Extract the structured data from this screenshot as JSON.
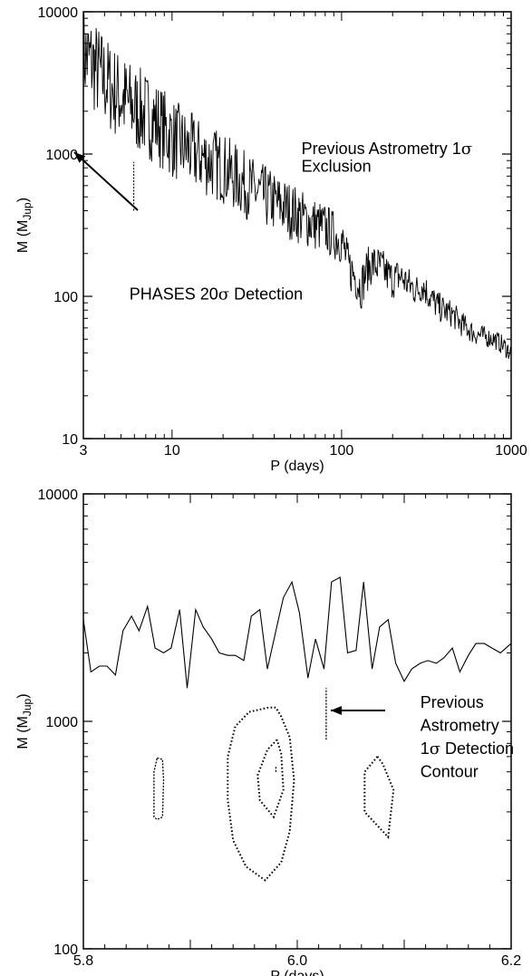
{
  "chart_data": [
    {
      "type": "line",
      "xlabel": "P (days)",
      "ylabel": "M (M",
      "ylabel_sub": "Jup",
      "ylabel_close": ")",
      "xscale": "log",
      "yscale": "log",
      "xlim": [
        3,
        1000
      ],
      "ylim": [
        10,
        10000
      ],
      "xticks": [
        "3",
        "10",
        "100",
        "1000"
      ],
      "yticks": [
        "10",
        "100",
        "1000",
        "10000"
      ],
      "series": [
        {
          "style": "solid",
          "x": [
            3.0,
            3.3,
            3.6,
            4.0,
            4.5,
            5.0,
            6.0,
            7.0,
            8.0,
            10.0,
            12.0,
            15.0,
            20.0,
            25.0,
            30.0,
            40.0,
            50.0,
            60.0,
            70.0,
            80.0,
            90.0,
            100.0,
            110.0,
            120.0,
            130.0,
            140.0,
            150.0,
            170.0,
            200.0,
            220.0,
            250.0,
            280.0,
            300.0,
            330.0,
            370.0,
            400.0,
            450.0,
            500.0,
            550.0,
            600.0,
            700.0,
            800.0,
            900.0,
            1000.0
          ],
          "y": [
            5000,
            4500,
            3900,
            3300,
            2800,
            2500,
            2100,
            1900,
            1700,
            1300,
            1100,
            950,
            800,
            650,
            560,
            460,
            400,
            350,
            320,
            300,
            270,
            250,
            160,
            140,
            115,
            150,
            170,
            160,
            130,
            140,
            120,
            110,
            120,
            100,
            85,
            80,
            75,
            65,
            60,
            55,
            52,
            50,
            45,
            40
          ],
          "noise": 0.35
        },
        {
          "style": "dashed",
          "x": [
            5.95,
            5.95
          ],
          "y": [
            400,
            880
          ]
        }
      ],
      "annotations": [
        {
          "text": "Previous Astrometry 1",
          "symbol": "σ",
          "x": 58,
          "y": 1000
        },
        {
          "text": "Exclusion",
          "x": 58,
          "y": 750
        },
        {
          "text": "PHASES 20",
          "symbol": "σ",
          "suffix": " Detection",
          "x": 5.6,
          "y": 95
        }
      ]
    },
    {
      "type": "line",
      "xlabel": "P (days)",
      "ylabel": "M (M",
      "ylabel_sub": "Jup",
      "ylabel_close": ")",
      "xscale": "linear",
      "yscale": "log",
      "xlim": [
        5.8,
        6.2
      ],
      "ylim": [
        100,
        10000
      ],
      "xticks": [
        "5.8",
        "6.0",
        "6.2"
      ],
      "yticks": [
        "100",
        "1000",
        "10000"
      ],
      "series": [
        {
          "style": "solid",
          "x": [
            5.8,
            5.807,
            5.815,
            5.822,
            5.83,
            5.837,
            5.845,
            5.852,
            5.86,
            5.867,
            5.875,
            5.882,
            5.89,
            5.897,
            5.905,
            5.912,
            5.92,
            5.927,
            5.935,
            5.942,
            5.95,
            5.957,
            5.965,
            5.972,
            5.98,
            5.987,
            5.995,
            6.002,
            6.01,
            6.017,
            6.025,
            6.032,
            6.04,
            6.047,
            6.055,
            6.062,
            6.07,
            6.077,
            6.085,
            6.092,
            6.1,
            6.107,
            6.115,
            6.122,
            6.13,
            6.137,
            6.145,
            6.152,
            6.16,
            6.167,
            6.175,
            6.182,
            6.19,
            6.2
          ],
          "y": [
            2800,
            1650,
            1750,
            1750,
            1600,
            2500,
            2900,
            2500,
            3200,
            2100,
            2000,
            2100,
            3100,
            1400,
            3100,
            2600,
            2300,
            2000,
            1950,
            1950,
            1850,
            2900,
            3100,
            1700,
            2500,
            3500,
            4100,
            3000,
            1550,
            2300,
            1700,
            4100,
            4300,
            2000,
            2050,
            4100,
            1700,
            2600,
            2800,
            1800,
            1500,
            1700,
            1800,
            1850,
            1800,
            1900,
            2100,
            1650,
            1950,
            2200,
            2200,
            2100,
            2000,
            2200
          ]
        }
      ],
      "contours": [
        {
          "style": "dotted",
          "x": [
            5.973,
            5.955,
            5.942,
            5.935,
            5.935,
            5.94,
            5.952,
            5.97,
            5.985,
            5.993,
            5.997,
            5.993,
            5.985,
            5.98,
            5.973
          ],
          "y": [
            1150,
            1100,
            950,
            700,
            450,
            300,
            230,
            200,
            240,
            330,
            550,
            850,
            1050,
            1150,
            1150
          ]
        },
        {
          "style": "dotted",
          "x": [
            5.981,
            5.972,
            5.963,
            5.965,
            5.978,
            5.987,
            5.985,
            5.981
          ],
          "y": [
            830,
            750,
            580,
            450,
            380,
            500,
            720,
            830
          ]
        },
        {
          "style": "dashed",
          "x": [
            5.869,
            5.874,
            5.875,
            5.874,
            5.869,
            5.866,
            5.866,
            5.869
          ],
          "y": [
            690,
            680,
            550,
            380,
            370,
            380,
            600,
            690
          ]
        },
        {
          "style": "dotted",
          "x": [
            6.075,
            6.08,
            6.09,
            6.085,
            6.063,
            6.063,
            6.075
          ],
          "y": [
            700,
            650,
            500,
            310,
            400,
            600,
            700
          ]
        },
        {
          "style": "dashed",
          "x": [
            5.98,
            5.98
          ],
          "y": [
            600,
            640
          ]
        },
        {
          "style": "dashed",
          "x": [
            6.027,
            6.027
          ],
          "y": [
            830,
            1400
          ]
        }
      ],
      "annotations": [
        {
          "text": "Previous",
          "x": 6.115,
          "y": 1150
        },
        {
          "text": "Astrometry",
          "x": 6.115,
          "y": 910
        },
        {
          "text": "1",
          "symbol": "σ",
          "suffix": " Detection",
          "x": 6.115,
          "y": 720
        },
        {
          "text": "Contour",
          "x": 6.115,
          "y": 570
        }
      ]
    }
  ]
}
